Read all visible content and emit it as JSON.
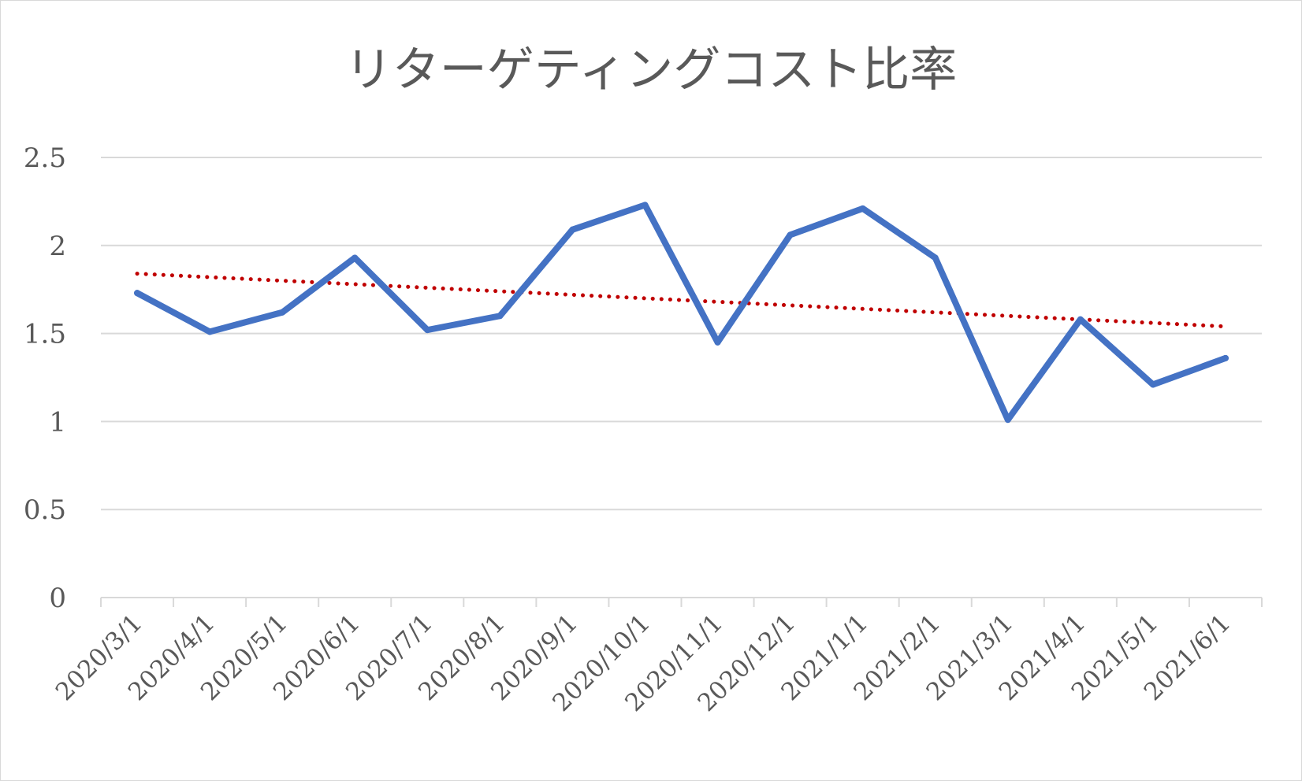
{
  "chart_data": {
    "type": "line",
    "title": "リターゲティングコスト比率",
    "xlabel": "",
    "ylabel": "",
    "categories": [
      "2020/3/1",
      "2020/4/1",
      "2020/5/1",
      "2020/6/1",
      "2020/7/1",
      "2020/8/1",
      "2020/9/1",
      "2020/10/1",
      "2020/11/1",
      "2020/12/1",
      "2021/1/1",
      "2021/2/1",
      "2021/3/1",
      "2021/4/1",
      "2021/5/1",
      "2021/6/1"
    ],
    "series": [
      {
        "values": [
          1.73,
          1.51,
          1.62,
          1.93,
          1.52,
          1.6,
          2.09,
          2.23,
          1.45,
          2.06,
          2.21,
          1.93,
          1.01,
          1.58,
          1.21,
          1.36
        ],
        "color": "#4472c4"
      }
    ],
    "trendline": {
      "type": "linear",
      "start": 1.84,
      "end": 1.54,
      "color": "#c00000",
      "style": "dotted"
    },
    "ylim": [
      0,
      2.5
    ],
    "yticks": [
      "0",
      "0.5",
      "1",
      "1.5",
      "2",
      "2.5"
    ],
    "grid": true,
    "legend": "none"
  }
}
